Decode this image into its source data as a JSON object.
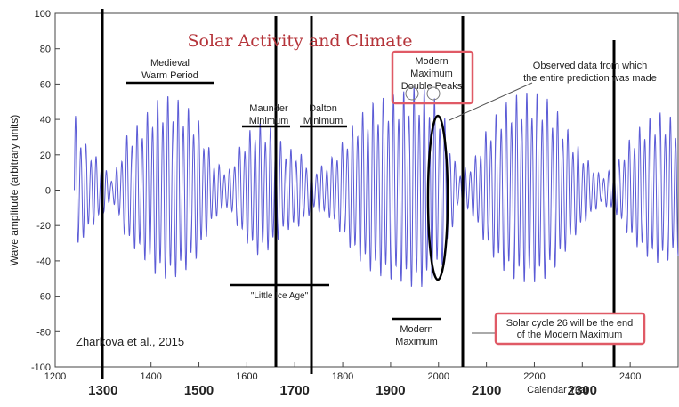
{
  "chart_data": {
    "type": "line",
    "title": "Solar Activity and Climate",
    "xlabel": "Calendar Year",
    "ylabel": "Wave amplitude (arbitrary units)",
    "xlim": [
      1200,
      2500
    ],
    "ylim": [
      -100,
      100
    ],
    "x_ticks": [
      1200,
      1300,
      1400,
      1500,
      1600,
      1700,
      1800,
      1900,
      2000,
      2100,
      2200,
      2300,
      2400
    ],
    "y_ticks": [
      -100,
      -80,
      -60,
      -40,
      -20,
      0,
      20,
      40,
      60,
      80,
      100
    ],
    "bold_year_labels": [
      1300,
      1500,
      1700,
      1900,
      2100,
      2300
    ],
    "line_color": "#5b5bd6",
    "title_color": "#b5343a",
    "box_color": "#e05a66",
    "series": [
      {
        "x_start": 1240,
        "x_end": 2500,
        "cycle_years": 10.7,
        "envelope": {
          "x": [
            1240,
            1260,
            1290,
            1320,
            1350,
            1380,
            1410,
            1440,
            1470,
            1500,
            1530,
            1560,
            1590,
            1620,
            1650,
            1680,
            1710,
            1740,
            1770,
            1800,
            1830,
            1860,
            1890,
            1920,
            1950,
            1980,
            2010,
            2040,
            2070,
            2100,
            2130,
            2160,
            2190,
            2220,
            2250,
            2280,
            2310,
            2340,
            2370,
            2400,
            2430,
            2460,
            2490,
            2500
          ],
          "amp": [
            45,
            28,
            18,
            6,
            32,
            40,
            52,
            55,
            50,
            40,
            18,
            10,
            28,
            40,
            36,
            25,
            22,
            12,
            16,
            28,
            42,
            50,
            54,
            56,
            60,
            58,
            45,
            10,
            15,
            35,
            48,
            55,
            57,
            55,
            45,
            30,
            18,
            8,
            14,
            30,
            40,
            45,
            42,
            40
          ]
        }
      }
    ],
    "annotations": {
      "medieval": "Medieval\nWarm Period",
      "maunder": "Maunder\nMinimum",
      "dalton": "Dalton\nMinimum",
      "modern_max_top": "Modern\nMaximum\nDouble Peaks",
      "observed": "Observed data from which\nthe entire prediction was made",
      "little_ice_age": "\"Little Ice Age\"",
      "modern_max_bottom": "Modern\nMaximum",
      "solar_cycle_26": "Solar cycle 26 will be the end\nof the Modern Maximum",
      "credit": "Zharkova et al., 2015"
    }
  }
}
